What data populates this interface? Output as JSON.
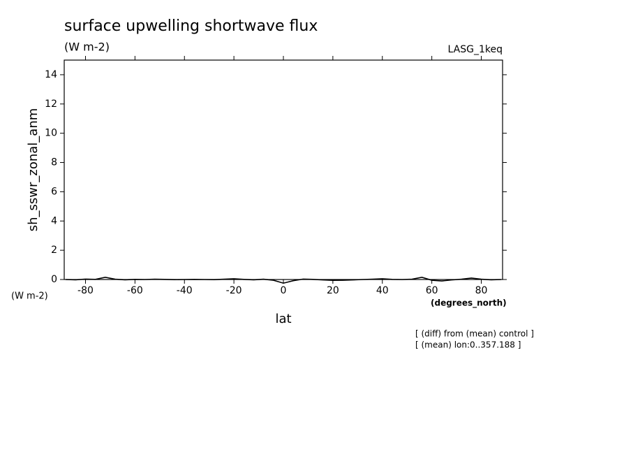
{
  "chart_data": {
    "type": "line",
    "title": "surface upwelling shortwave flux",
    "subtitle": "(W m-2)",
    "dataset_label": "LASG_1keq",
    "y_label": "sh_sswr_zonal_anm",
    "y_units": "(W m-2)",
    "x_label": "lat",
    "x_units": "(degrees_north)",
    "annotations": [
      "[ (diff) from (mean) control ]",
      "[ (mean) lon:0..357.188 ]"
    ],
    "x": [
      -88,
      -84,
      -80,
      -76,
      -72,
      -68,
      -64,
      -60,
      -56,
      -52,
      -48,
      -44,
      -40,
      -36,
      -32,
      -28,
      -24,
      -20,
      -16,
      -12,
      -8,
      -4,
      0,
      4,
      8,
      12,
      16,
      20,
      24,
      28,
      32,
      36,
      40,
      44,
      48,
      52,
      56,
      60,
      64,
      68,
      72,
      76,
      80,
      84,
      88
    ],
    "series": [
      {
        "name": "sh_sswr_zonal_anm",
        "color": "#000000",
        "values": [
          0,
          -0.02,
          0.03,
          0.01,
          0.15,
          0.02,
          -0.02,
          0.01,
          0,
          0.02,
          0.01,
          -0.01,
          0,
          0.01,
          0,
          -0.01,
          0.02,
          0.05,
          0.01,
          -0.02,
          0.02,
          -0.05,
          -0.25,
          -0.08,
          0.03,
          0.01,
          -0.03,
          -0.06,
          -0.05,
          -0.03,
          0,
          0.02,
          0.05,
          0.01,
          0,
          0.02,
          0.15,
          -0.05,
          -0.1,
          -0.03,
          0.02,
          0.1,
          0.02,
          -0.02,
          0
        ]
      }
    ],
    "xlim": [
      -88.6,
      88.6
    ],
    "ylim": [
      0,
      15
    ],
    "xticks": [
      -80,
      -60,
      -40,
      -20,
      0,
      20,
      40,
      60,
      80
    ],
    "yticks": [
      0,
      2,
      4,
      6,
      8,
      10,
      12,
      14
    ]
  }
}
